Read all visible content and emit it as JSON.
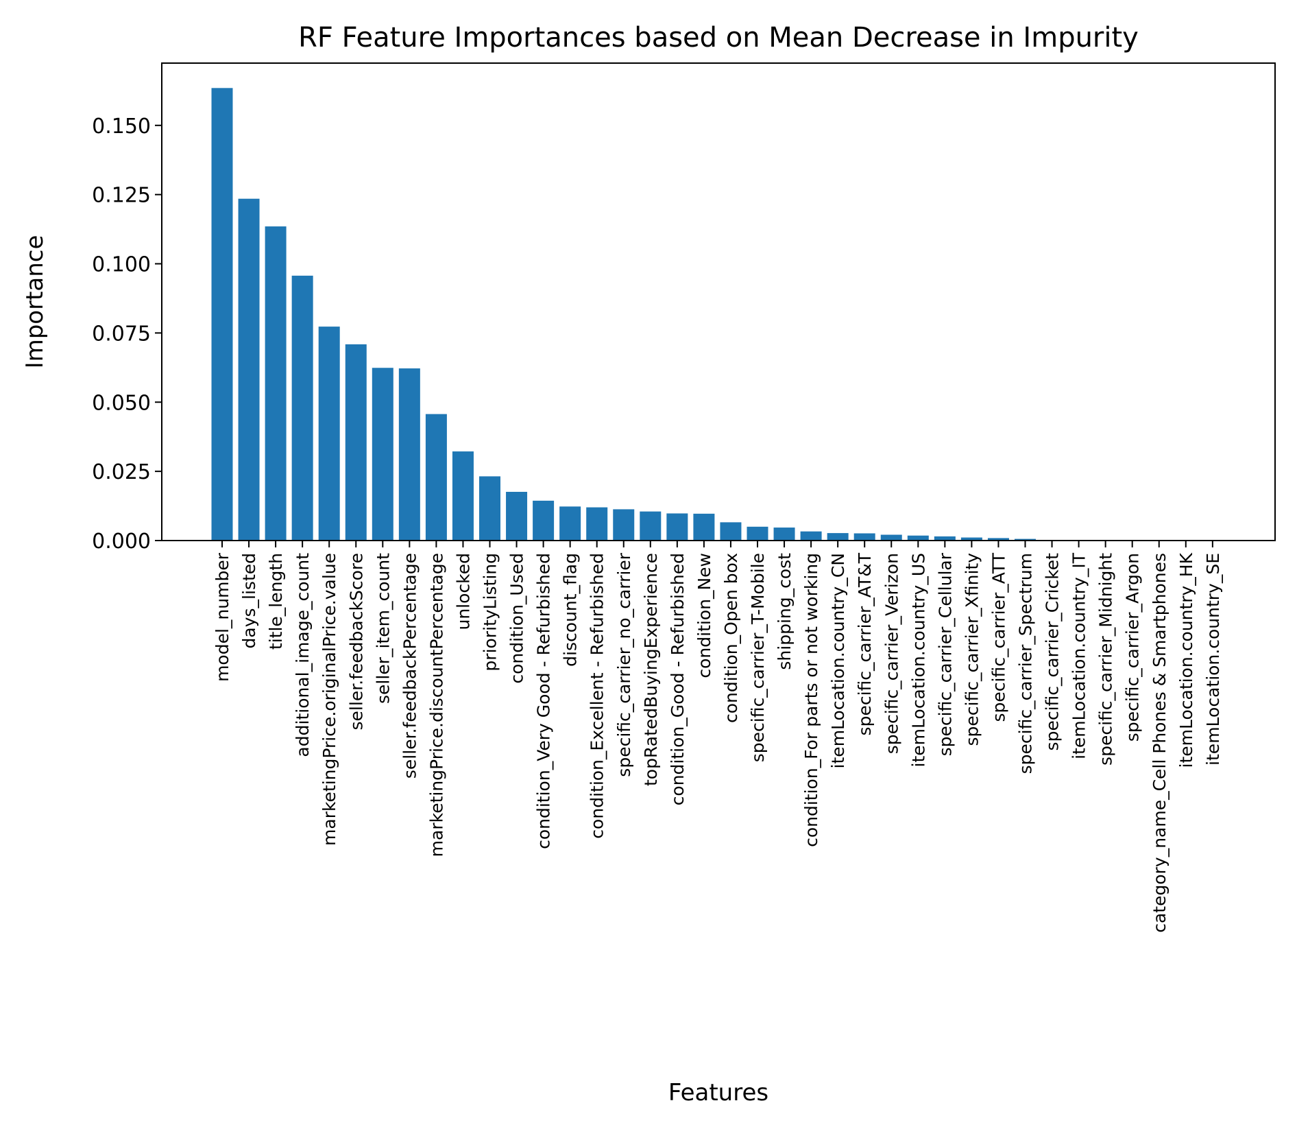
{
  "chart_data": {
    "type": "bar",
    "title": "RF Feature Importances based on Mean Decrease in Impurity",
    "xlabel": "Features",
    "ylabel": "Importance",
    "ylim": [
      0,
      0.1725
    ],
    "yticks": [
      "0.000",
      "0.025",
      "0.050",
      "0.075",
      "0.100",
      "0.125",
      "0.150"
    ],
    "grid": false,
    "legend": "none",
    "bar_color": "#1f77b4",
    "categories": [
      "model_number",
      "days_listed",
      "title_length",
      "additional_image_count",
      "marketingPrice.originalPrice.value",
      "seller.feedbackScore",
      "seller_item_count",
      "seller.feedbackPercentage",
      "marketingPrice.discountPercentage",
      "unlocked",
      "priorityListing",
      "condition_Used",
      "condition_Very Good - Refurbished",
      "discount_flag",
      "condition_Excellent - Refurbished",
      "specific_carrier_no_carrier",
      "topRatedBuyingExperience",
      "condition_Good - Refurbished",
      "condition_New",
      "condition_Open box",
      "specific_carrier_T-Mobile",
      "shipping_cost",
      "condition_For parts or not working",
      "itemLocation.country_CN",
      "specific_carrier_AT&T",
      "specific_carrier_Verizon",
      "itemLocation.country_US",
      "specific_carrier_Cellular",
      "specific_carrier_Xfinity",
      "specific_carrier_ATT",
      "specific_carrier_Spectrum",
      "specific_carrier_Cricket",
      "itemLocation.country_IT",
      "specific_carrier_Midnight",
      "specific_carrier_Argon",
      "category_name_Cell Phones & Smartphones",
      "itemLocation.country_HK",
      "itemLocation.country_SE"
    ],
    "values": [
      0.1635,
      0.1235,
      0.1135,
      0.0957,
      0.0773,
      0.0709,
      0.0624,
      0.0622,
      0.0457,
      0.0322,
      0.0232,
      0.0176,
      0.0144,
      0.0123,
      0.012,
      0.0113,
      0.0105,
      0.0098,
      0.0097,
      0.0066,
      0.005,
      0.0047,
      0.0033,
      0.0027,
      0.0026,
      0.0021,
      0.0018,
      0.0015,
      0.0011,
      0.0009,
      0.0006,
      0.0002,
      0.0001,
      0.0001,
      0.0001,
      0.0,
      0.0,
      0.0
    ]
  }
}
